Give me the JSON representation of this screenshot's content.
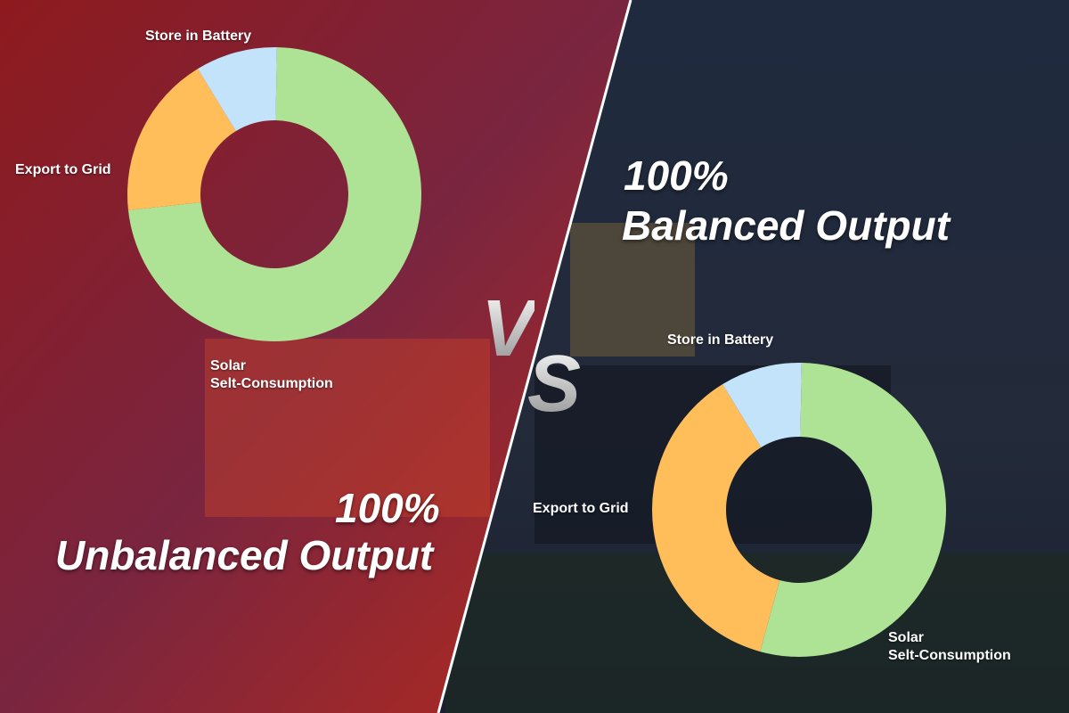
{
  "colors": {
    "solar": "#aee396",
    "grid": "#ffbe5a",
    "battery": "#c3e3fb",
    "left_overlay": "#9a1a22",
    "right_overlay": "#1b2540"
  },
  "vs": {
    "v": "V",
    "s": "S"
  },
  "chart_data": [
    {
      "type": "pie",
      "donut": true,
      "title": "100% Unbalanced Output",
      "title_line1": "100%",
      "title_line2": "Unbalanced Output",
      "categories": [
        "Solar Selt-Consumption",
        "Export to Grid",
        "Store in Battery"
      ],
      "label_lines": [
        [
          "Solar",
          "Selt-Consumption"
        ],
        [
          "Export to Grid"
        ],
        [
          "Store in Battery"
        ]
      ],
      "values": [
        73,
        18,
        9
      ],
      "colors": [
        "#aee396",
        "#ffbe5a",
        "#c3e3fb"
      ]
    },
    {
      "type": "pie",
      "donut": true,
      "title": "100% Balanced Output",
      "title_line1": "100%",
      "title_line2": "Balanced Output",
      "categories": [
        "Solar Selt-Consumption",
        "Export to Grid",
        "Store in Battery"
      ],
      "label_lines": [
        [
          "Solar",
          "Selt-Consumption"
        ],
        [
          "Export to Grid"
        ],
        [
          "Store in Battery"
        ]
      ],
      "values": [
        54,
        37,
        9
      ],
      "colors": [
        "#aee396",
        "#ffbe5a",
        "#c3e3fb"
      ]
    }
  ]
}
